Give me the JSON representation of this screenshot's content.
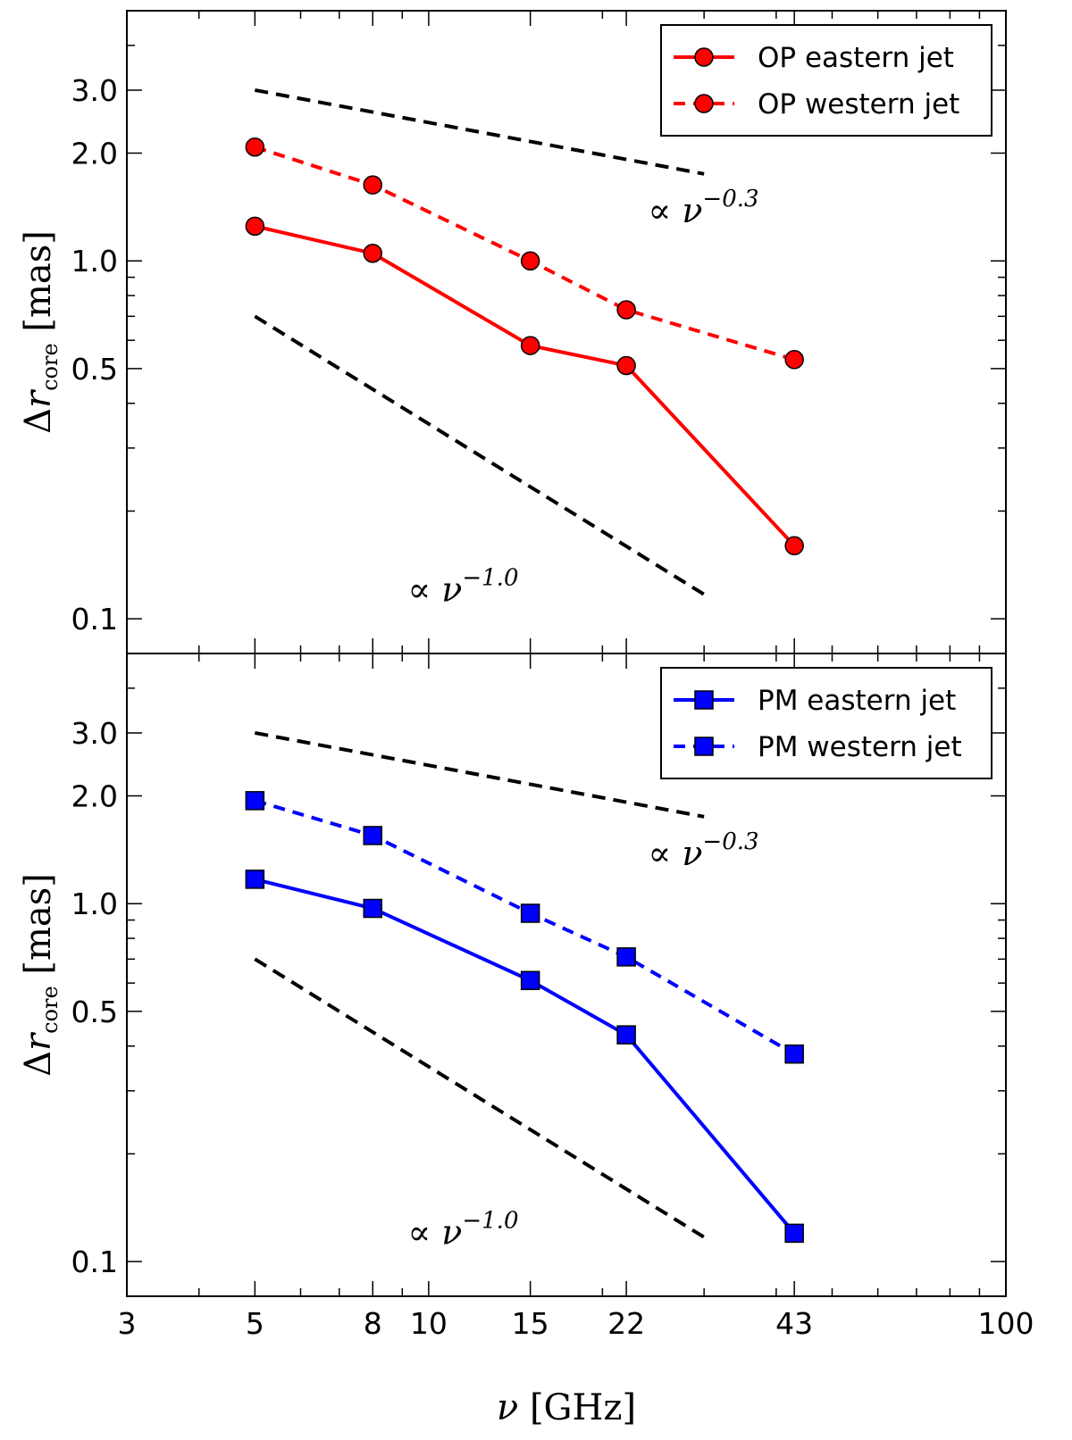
{
  "chart_data": [
    {
      "type": "line",
      "panel": "top",
      "xscale": "log",
      "yscale": "log",
      "xlim": [
        3,
        100
      ],
      "ylim": [
        0.08,
        5.0
      ],
      "ylabel": "Δr_core [mas]",
      "ylabel_parts": {
        "delta": "Δ",
        "r": "r",
        "sub": "core",
        "unit": "[mas]"
      },
      "yticks": [
        0.1,
        0.5,
        1.0,
        2.0,
        3.0
      ],
      "ytick_labels": [
        "0.1",
        "0.5",
        "1.0",
        "2.0",
        "3.0"
      ],
      "x": [
        5,
        8,
        15,
        22,
        43
      ],
      "series": [
        {
          "name": "OP eastern jet",
          "style": "solid",
          "marker": "circle",
          "color": "#ff0000",
          "values": [
            1.25,
            1.05,
            0.58,
            0.51,
            0.16
          ]
        },
        {
          "name": "OP western jet",
          "style": "dashed",
          "marker": "circle",
          "color": "#ff0000",
          "values": [
            2.08,
            1.63,
            1.0,
            0.73,
            0.53
          ]
        }
      ],
      "reference_lines": [
        {
          "name": "nu^-0.3",
          "x": [
            5,
            30
          ],
          "y": [
            3.0,
            1.75
          ],
          "color": "#000000"
        },
        {
          "name": "nu^-1.0",
          "x": [
            5,
            30
          ],
          "y": [
            0.7,
            0.117
          ],
          "color": "#000000"
        }
      ],
      "annotations": [
        {
          "prefix": "∝",
          "var": "ν",
          "exp": "−0.3",
          "x": 24,
          "y": 1.28
        },
        {
          "prefix": "∝",
          "var": "ν",
          "exp": "−1.0",
          "x": 9.2,
          "y": 0.112
        }
      ],
      "legend": {
        "position": "top-right"
      }
    },
    {
      "type": "line",
      "panel": "bottom",
      "xscale": "log",
      "yscale": "log",
      "xlim": [
        3,
        100
      ],
      "ylim": [
        0.08,
        5.0
      ],
      "xlabel": "ν [GHz]",
      "xlabel_parts": {
        "var": "ν",
        "unit": "[GHz]"
      },
      "xticks": [
        3,
        5,
        8,
        10,
        15,
        22,
        43,
        100
      ],
      "xtick_labels": [
        "3",
        "5",
        "8",
        "10",
        "15",
        "22",
        "43",
        "100"
      ],
      "ylabel": "Δr_core [mas]",
      "ylabel_parts": {
        "delta": "Δ",
        "r": "r",
        "sub": "core",
        "unit": "[mas]"
      },
      "yticks": [
        0.1,
        0.5,
        1.0,
        2.0,
        3.0
      ],
      "ytick_labels": [
        "0.1",
        "0.5",
        "1.0",
        "2.0",
        "3.0"
      ],
      "x": [
        5,
        8,
        15,
        22,
        43
      ],
      "series": [
        {
          "name": "PM eastern jet",
          "style": "solid",
          "marker": "square",
          "color": "#0000ff",
          "values": [
            1.17,
            0.97,
            0.61,
            0.43,
            0.12
          ]
        },
        {
          "name": "PM western jet",
          "style": "dashed",
          "marker": "square",
          "color": "#0000ff",
          "values": [
            1.94,
            1.55,
            0.94,
            0.71,
            0.38
          ]
        }
      ],
      "reference_lines": [
        {
          "name": "nu^-0.3",
          "x": [
            5,
            30
          ],
          "y": [
            3.0,
            1.75
          ],
          "color": "#000000"
        },
        {
          "name": "nu^-1.0",
          "x": [
            5,
            30
          ],
          "y": [
            0.7,
            0.117
          ],
          "color": "#000000"
        }
      ],
      "annotations": [
        {
          "prefix": "∝",
          "var": "ν",
          "exp": "−0.3",
          "x": 24,
          "y": 1.28
        },
        {
          "prefix": "∝",
          "var": "ν",
          "exp": "−1.0",
          "x": 9.2,
          "y": 0.112
        }
      ],
      "legend": {
        "position": "top-right"
      }
    }
  ]
}
